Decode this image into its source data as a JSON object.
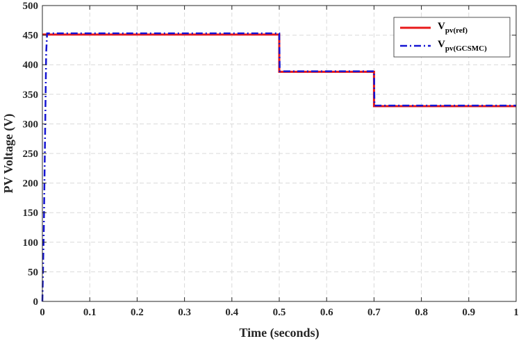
{
  "chart_data": {
    "type": "line",
    "xlabel": "Time (seconds)",
    "ylabel": "PV Voltage (V)",
    "xlim": [
      0,
      1
    ],
    "ylim": [
      0,
      500
    ],
    "xticks": [
      0,
      0.1,
      0.2,
      0.3,
      0.4,
      0.5,
      0.6,
      0.7,
      0.8,
      0.9,
      1
    ],
    "xtick_labels": [
      "0",
      "0.1",
      "0.2",
      "0.3",
      "0.4",
      "0.5",
      "0.6",
      "0.7",
      "0.8",
      "0.9",
      "1"
    ],
    "yticks": [
      0,
      50,
      100,
      150,
      200,
      250,
      300,
      350,
      400,
      450,
      500
    ],
    "ytick_labels": [
      "0",
      "50",
      "100",
      "150",
      "200",
      "250",
      "300",
      "350",
      "400",
      "450",
      "500"
    ],
    "grid": true,
    "legend_position": "top-right",
    "series": [
      {
        "name": "V",
        "name_sub": "pv(ref)",
        "color": "#e8191a",
        "style": "solid",
        "x": [
          0,
          0.5,
          0.5,
          0.7,
          0.7,
          1.0
        ],
        "y": [
          451,
          451,
          388,
          388,
          330,
          330
        ]
      },
      {
        "name": "V",
        "name_sub": "pv(GCSMC)",
        "color": "#1414d2",
        "style": "dash-dot",
        "x": [
          0,
          0.003,
          0.006,
          0.008,
          0.01,
          0.5,
          0.501,
          0.7,
          0.701,
          1.0
        ],
        "y": [
          0,
          120,
          300,
          420,
          453,
          453,
          389,
          389,
          331,
          331
        ]
      }
    ]
  }
}
